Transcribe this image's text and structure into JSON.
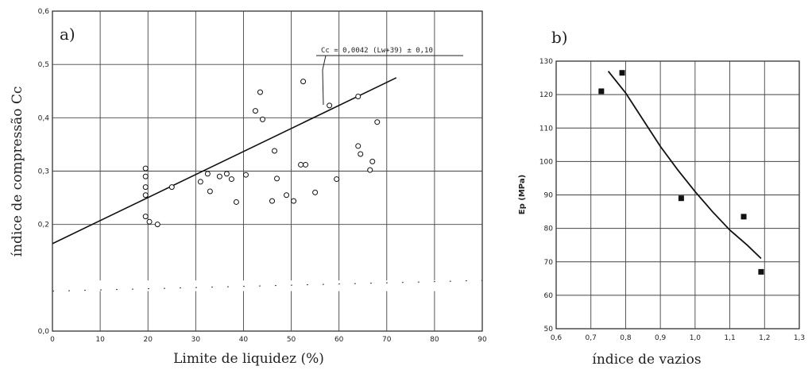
{
  "chart_data": [
    {
      "type": "scatter",
      "panel_label": "a)",
      "xlabel": "Limite de liquidez (%)",
      "ylabel": "índice de compressão Cc",
      "xlim": [
        0,
        90
      ],
      "ylim": [
        0.0,
        0.6
      ],
      "x_ticks": [
        "0",
        "10",
        "20",
        "30",
        "40",
        "50",
        "60",
        "70",
        "80",
        "90"
      ],
      "y_ticks": [
        "0,0",
        "0,2",
        "0,3",
        "0,4",
        "0,5",
        "0,6"
      ],
      "grid": true,
      "annotation": "Cc = 0,0042 (Lw+39) ± 0,10",
      "series": [
        {
          "marker": "open-circle",
          "points": [
            [
              19.5,
              0.305
            ],
            [
              19.5,
              0.29
            ],
            [
              19.5,
              0.27
            ],
            [
              19.5,
              0.255
            ],
            [
              19.5,
              0.215
            ],
            [
              20.3,
              0.205
            ],
            [
              22,
              0.2
            ],
            [
              25,
              0.27
            ],
            [
              31,
              0.28
            ],
            [
              32.5,
              0.295
            ],
            [
              33,
              0.262
            ],
            [
              35,
              0.29
            ],
            [
              36.5,
              0.295
            ],
            [
              37.5,
              0.285
            ],
            [
              38.5,
              0.242
            ],
            [
              40.5,
              0.293
            ],
            [
              42.5,
              0.413
            ],
            [
              43.5,
              0.448
            ],
            [
              44,
              0.397
            ],
            [
              46,
              0.244
            ],
            [
              46.5,
              0.338
            ],
            [
              47,
              0.286
            ],
            [
              49,
              0.255
            ],
            [
              50.5,
              0.244
            ],
            [
              52,
              0.312
            ],
            [
              52.5,
              0.468
            ],
            [
              53,
              0.312
            ],
            [
              55,
              0.26
            ],
            [
              58,
              0.423
            ],
            [
              59.5,
              0.285
            ],
            [
              64,
              0.44
            ],
            [
              64,
              0.347
            ],
            [
              64.5,
              0.332
            ],
            [
              66.5,
              0.302
            ],
            [
              67,
              0.318
            ],
            [
              68,
              0.392
            ]
          ]
        },
        {
          "name": "",
          "type": "line",
          "x": [
            0,
            72
          ],
          "y": [
            0.164,
            0.475
          ]
        }
      ],
      "broken_axis_band": [
        0.075,
        0.095
      ]
    },
    {
      "type": "scatter",
      "panel_label": "b)",
      "xlabel": "índice de vazios",
      "ylabel": "Ep (MPa)",
      "xlim": [
        0.6,
        1.3
      ],
      "ylim": [
        50,
        130
      ],
      "x_ticks": [
        "0,6",
        "0,7",
        "0,8",
        "0,9",
        "1,0",
        "1,1",
        "1,2",
        "1,3"
      ],
      "y_ticks": [
        "50",
        "60",
        "70",
        "80",
        "90",
        "100",
        "110",
        "120",
        "130"
      ],
      "grid": true,
      "series": [
        {
          "marker": "filled-square",
          "x": [
            0.73,
            0.79,
            0.96,
            1.14,
            1.19
          ],
          "y": [
            121,
            126.5,
            89,
            83.5,
            67
          ]
        },
        {
          "name": "",
          "type": "line",
          "x": [
            0.75,
            0.8,
            0.85,
            0.9,
            0.95,
            1.0,
            1.05,
            1.1,
            1.15,
            1.19
          ],
          "y": [
            127,
            120.5,
            112.5,
            104.5,
            97.5,
            91,
            85,
            79.5,
            75,
            71
          ]
        }
      ]
    }
  ]
}
